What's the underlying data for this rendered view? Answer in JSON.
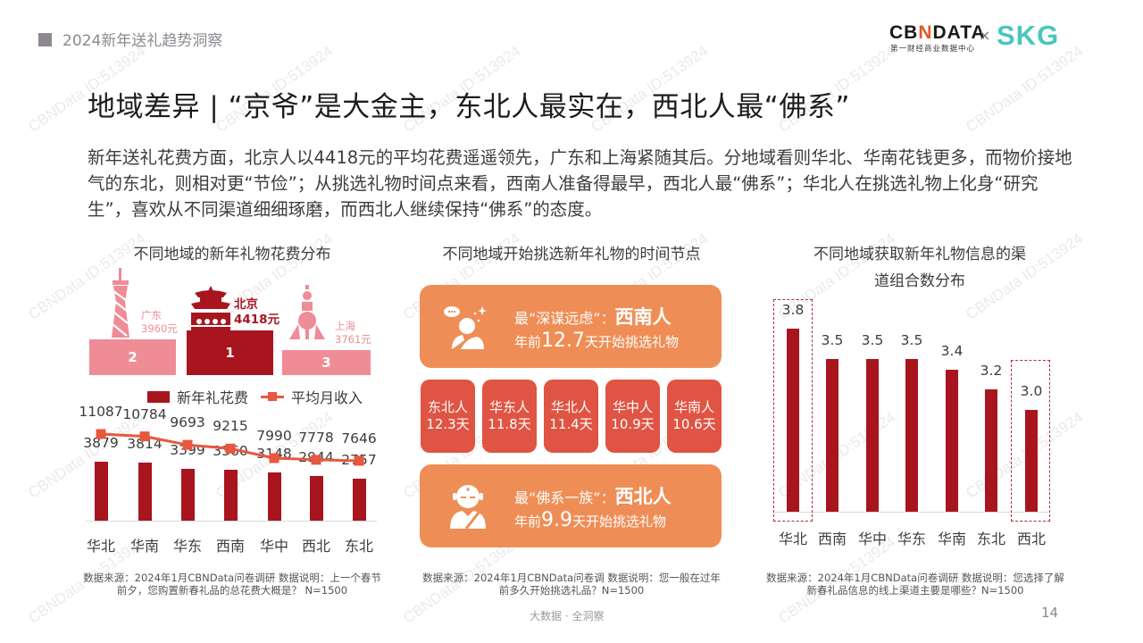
{
  "header": {
    "report_title": "2024新年送礼趋势洞察",
    "logo_cbn": "CBNDATA",
    "logo_cbn_sub": "第一财经商业数据中心",
    "logo_x": "×",
    "logo_skg": "SKG"
  },
  "page_title": "地域差异 | “京爷”是大金主，东北人最实在，西北人最“佛系”",
  "summary": "新年送礼花费方面，北京人以4418元的平均花费遥遥领先，广东和上海紧随其后。分地域看则华北、华南花钱更多，而物价接地气的东北，则相对更“节俭”；从挑选礼物时间点来看，西南人准备得最早，西北人最“佛系”；华北人在挑选礼物上化身“研究生”，喜欢从不同渠道细细琢磨，而西北人继续保持“佛系”的态度。",
  "left_panel": {
    "title": "不同地域的新年礼物花费分布",
    "podium": [
      {
        "rank": "2",
        "city": "广东",
        "value": "3960元"
      },
      {
        "rank": "1",
        "city": "北京",
        "value": "4418元"
      },
      {
        "rank": "3",
        "city": "上海",
        "value": "3761元"
      }
    ],
    "legend_bar": "新年礼花费",
    "legend_line": "平均月收入",
    "note": "数据来源：2024年1月CBNData问卷调研 数据说明：上一个春节前夕，您购置新春礼品的总花费大概是？ N=1500"
  },
  "middle_panel": {
    "title": "不同地域开始挑选新年礼物的时间节点",
    "top_card": {
      "prefix": "最“深谋远虑”：",
      "region": "西南人",
      "line2_pre": "年前",
      "days": "12.7",
      "line2_post": "天开始挑选礼物"
    },
    "tiles": [
      {
        "region": "东北人",
        "days": "12.3天"
      },
      {
        "region": "华东人",
        "days": "11.8天"
      },
      {
        "region": "华北人",
        "days": "11.4天"
      },
      {
        "region": "华中人",
        "days": "10.9天"
      },
      {
        "region": "华南人",
        "days": "10.6天"
      }
    ],
    "bottom_card": {
      "prefix": "最“佛系一族”：",
      "region": "西北人",
      "line2_pre": "年前",
      "days": "9.9",
      "line2_post": "天开始挑选礼物"
    },
    "note": "数据来源：2024年1月CBNData问卷调 数据说明：您一般在过年前多久开始挑选礼品？N=1500"
  },
  "right_panel": {
    "title_line1": "不同地域获取新年礼物信息的渠",
    "title_line2": "道组合数分布",
    "note": "数据来源：2024年1月CBNData问卷调研 数据说明：您选择了解新春礼品信息的线上渠道主要是哪些？N=1500"
  },
  "chart_data": [
    {
      "type": "bar",
      "title": "不同地域的新年礼物花费分布 (Top 3 cities)",
      "categories": [
        "北京",
        "广东",
        "上海"
      ],
      "values": [
        4418,
        3960,
        3761
      ],
      "unit": "元",
      "ranks": [
        1,
        2,
        3
      ]
    },
    {
      "type": "bar+line",
      "title": "不同地域的新年礼物花费分布",
      "categories": [
        "华北",
        "华南",
        "华东",
        "西南",
        "华中",
        "西北",
        "东北"
      ],
      "series": [
        {
          "name": "新年礼花费",
          "type": "bar",
          "values": [
            3879,
            3814,
            3399,
            3360,
            3148,
            2944,
            2757
          ]
        },
        {
          "name": "平均月收入",
          "type": "line",
          "values": [
            11087,
            10784,
            9693,
            9215,
            7990,
            7778,
            7646
          ]
        }
      ],
      "legend_position": "top",
      "grid": false
    },
    {
      "type": "table",
      "title": "不同地域开始挑选新年礼物的时间节点",
      "categories": [
        "西南人",
        "东北人",
        "华东人",
        "华北人",
        "华中人",
        "华南人",
        "西北人"
      ],
      "values": [
        12.7,
        12.3,
        11.8,
        11.4,
        10.9,
        10.6,
        9.9
      ],
      "unit": "天"
    },
    {
      "type": "bar",
      "title": "不同地域获取新年礼物信息的渠道组合数分布",
      "categories": [
        "华北",
        "西南",
        "华中",
        "华东",
        "华南",
        "东北",
        "西北"
      ],
      "values": [
        3.8,
        3.5,
        3.5,
        3.5,
        3.4,
        3.2,
        3.0
      ],
      "highlighted": [
        "华北",
        "西北"
      ],
      "grid": false
    }
  ],
  "footer": {
    "tagline": "大数据 · 全洞察",
    "page_number": "14"
  },
  "watermark": "CBNData ID:513924"
}
